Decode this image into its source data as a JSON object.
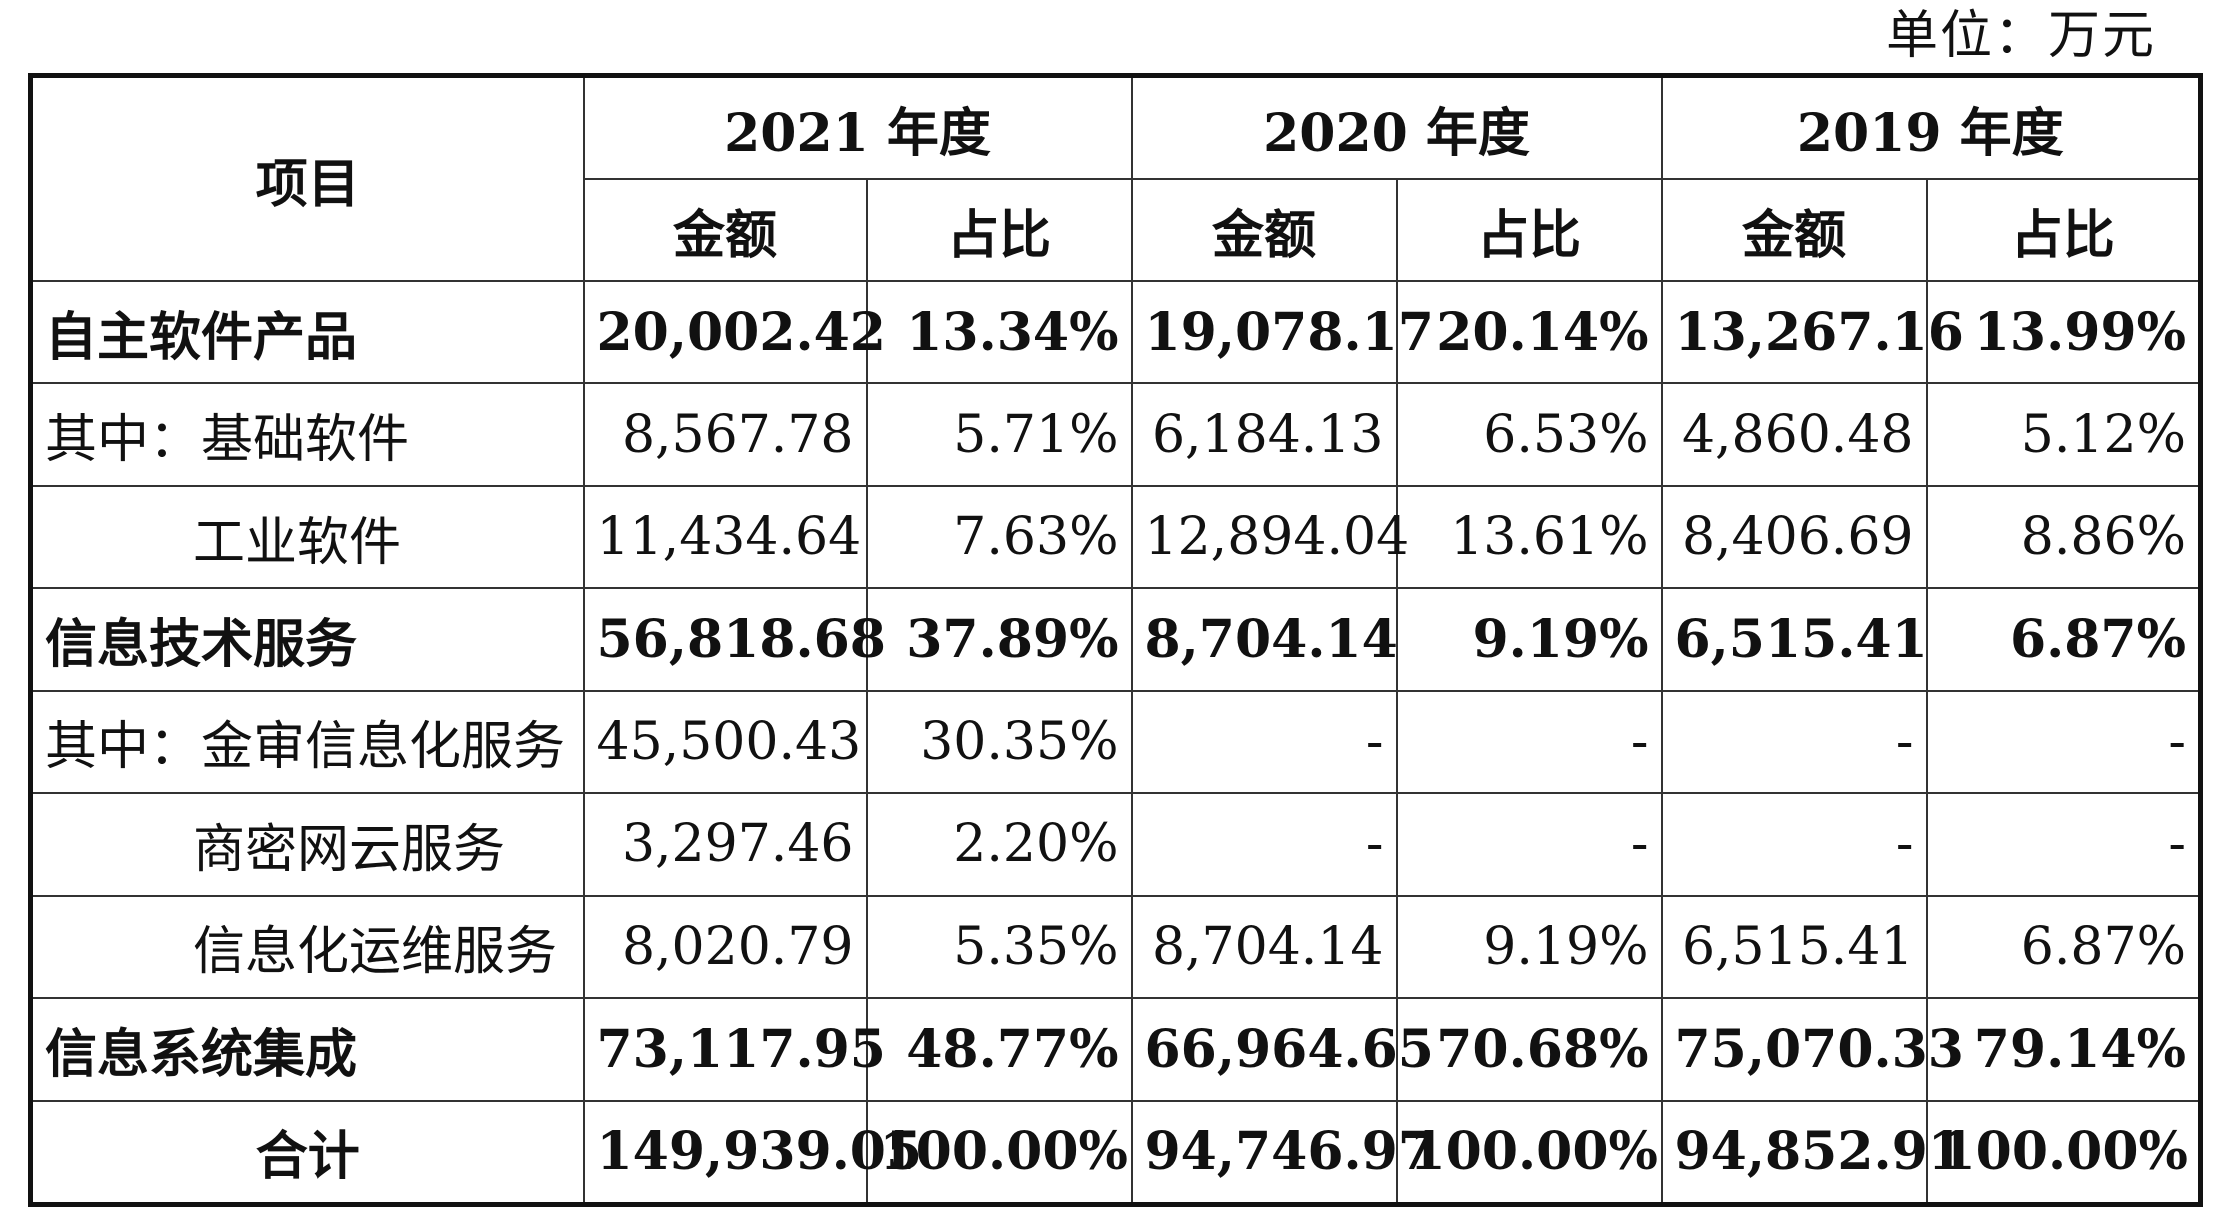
{
  "unit_label": "单位：万元",
  "header": {
    "item": "项目",
    "years": [
      "2021 年度",
      "2020 年度",
      "2019 年度"
    ],
    "amount": "金额",
    "ratio": "占比"
  },
  "rows": [
    {
      "label": "自主软件产品",
      "bold": true,
      "indent": false,
      "values": [
        "20,002.42",
        "13.34%",
        "19,078.17",
        "20.14%",
        "13,267.16",
        "13.99%"
      ]
    },
    {
      "label": "其中：基础软件",
      "bold": false,
      "indent": false,
      "values": [
        "8,567.78",
        "5.71%",
        "6,184.13",
        "6.53%",
        "4,860.48",
        "5.12%"
      ]
    },
    {
      "label": "工业软件",
      "bold": false,
      "indent": true,
      "values": [
        "11,434.64",
        "7.63%",
        "12,894.04",
        "13.61%",
        "8,406.69",
        "8.86%"
      ]
    },
    {
      "label": "信息技术服务",
      "bold": true,
      "indent": false,
      "values": [
        "56,818.68",
        "37.89%",
        "8,704.14",
        "9.19%",
        "6,515.41",
        "6.87%"
      ]
    },
    {
      "label": "其中：金审信息化服务",
      "bold": false,
      "indent": false,
      "values": [
        "45,500.43",
        "30.35%",
        "-",
        "-",
        "-",
        "-"
      ]
    },
    {
      "label": "商密网云服务",
      "bold": false,
      "indent": true,
      "values": [
        "3,297.46",
        "2.20%",
        "-",
        "-",
        "-",
        "-"
      ]
    },
    {
      "label": "信息化运维服务",
      "bold": false,
      "indent": true,
      "values": [
        "8,020.79",
        "5.35%",
        "8,704.14",
        "9.19%",
        "6,515.41",
        "6.87%"
      ]
    },
    {
      "label": "信息系统集成",
      "bold": true,
      "indent": false,
      "values": [
        "73,117.95",
        "48.77%",
        "66,964.65",
        "70.68%",
        "75,070.33",
        "79.14%"
      ]
    }
  ],
  "total": {
    "label": "合计",
    "values": [
      "149,939.05",
      "100.00%",
      "94,746.97",
      "100.00%",
      "94,852.91",
      "100.00%"
    ]
  }
}
